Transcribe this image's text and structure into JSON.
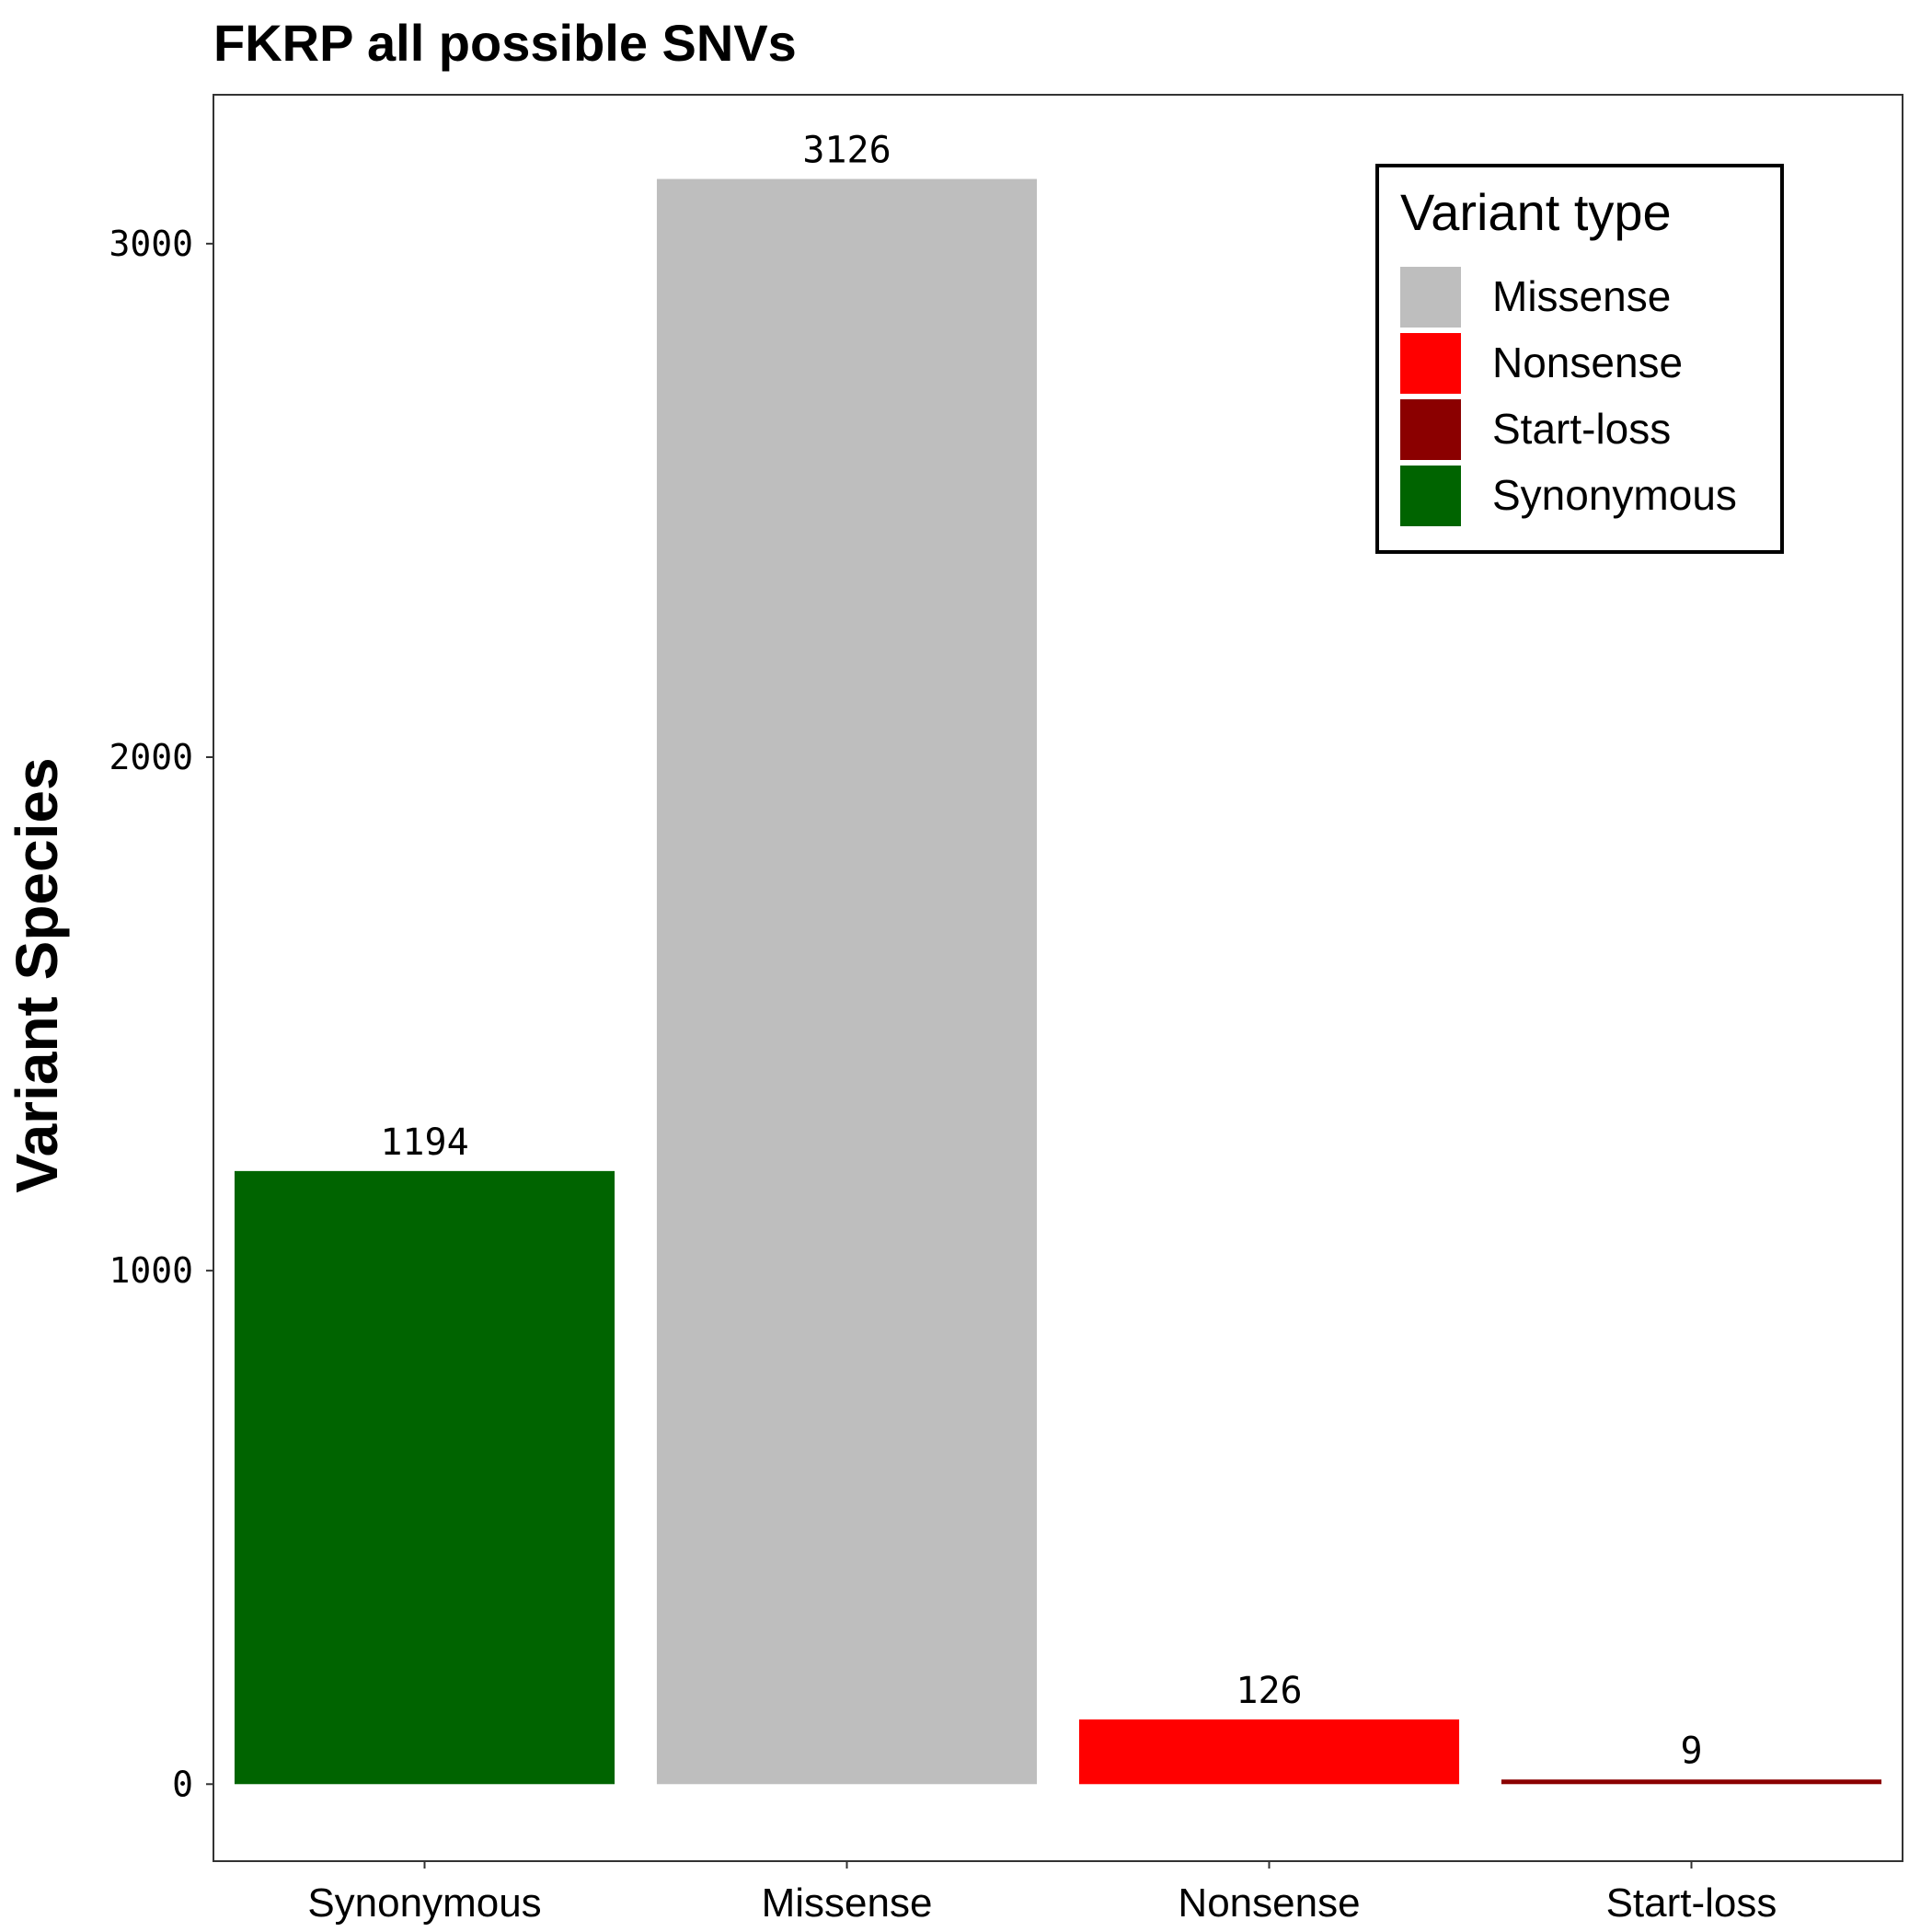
{
  "chart_data": {
    "type": "bar",
    "title": "FKRP all possible SNVs",
    "xlabel": "",
    "ylabel": "Variant Species",
    "categories": [
      "Synonymous",
      "Missense",
      "Nonsense",
      "Start-loss"
    ],
    "values": [
      1194,
      3126,
      126,
      9
    ],
    "colors": [
      "#006400",
      "#BEBEBE",
      "#FF0000",
      "#8B0000"
    ],
    "ylim": [
      -150,
      3290
    ],
    "yticks": [
      0,
      1000,
      2000,
      3000
    ],
    "grid": false,
    "legend": {
      "title": "Variant type",
      "position": "top-right",
      "items": [
        {
          "label": "Missense",
          "color": "#BEBEBE"
        },
        {
          "label": "Nonsense",
          "color": "#FF0000"
        },
        {
          "label": "Start-loss",
          "color": "#8B0000"
        },
        {
          "label": "Synonymous",
          "color": "#006400"
        }
      ]
    }
  }
}
